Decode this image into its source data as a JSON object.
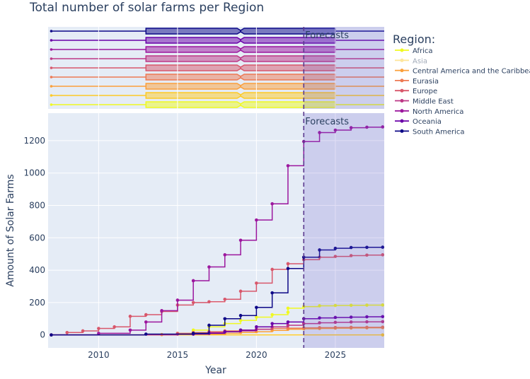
{
  "chart_data": {
    "type": "line",
    "title": "Total number of solar farms per Region",
    "xlabel": "Year",
    "ylabel": "Amount of Solar Farms",
    "xlim": [
      2006.8,
      2028.1
    ],
    "ylim": [
      -80,
      1370
    ],
    "x_ticks": [
      2010,
      2015,
      2020,
      2025
    ],
    "y_ticks": [
      0,
      200,
      400,
      600,
      800,
      1000,
      1200
    ],
    "forecast_start": 2023,
    "forecast_label": "Forecasts",
    "legend_title": "Region:",
    "grid": true,
    "legend_position": "right",
    "box_stats": {
      "q1": 2013,
      "median": 2019,
      "q3": 2025
    },
    "series": [
      {
        "name": "Africa",
        "color": "#f0f921",
        "legend_opacity": 1,
        "x": [
          2016,
          2017,
          2018,
          2019,
          2020,
          2021,
          2022,
          2022,
          2023,
          2024,
          2025,
          2026,
          2027,
          2028
        ],
        "y": [
          30,
          50,
          70,
          90,
          110,
          125,
          140,
          165,
          175,
          180,
          182,
          183,
          184,
          185
        ]
      },
      {
        "name": "Asia",
        "color": "#fdca26",
        "legend_opacity": 0.45,
        "x": [
          2007,
          2028
        ],
        "y": [
          0,
          0
        ]
      },
      {
        "name": "Central America and the Caribbean",
        "color": "#fb9f3a",
        "legend_opacity": 1,
        "x": [
          2014,
          2016,
          2018,
          2019,
          2020,
          2021,
          2022,
          2023,
          2024,
          2025,
          2026,
          2027,
          2028
        ],
        "y": [
          2,
          5,
          10,
          15,
          20,
          28,
          35,
          38,
          40,
          42,
          43,
          44,
          45
        ]
      },
      {
        "name": "Eurasia",
        "color": "#ed7953",
        "legend_opacity": 1,
        "x": [
          2015,
          2016,
          2017,
          2018,
          2019,
          2020,
          2021,
          2022,
          2023,
          2024,
          2025,
          2026,
          2027,
          2028
        ],
        "y": [
          10,
          15,
          20,
          25,
          30,
          35,
          40,
          42,
          44,
          45,
          46,
          47,
          47,
          48
        ]
      },
      {
        "name": "Europe",
        "color": "#d8576b",
        "legend_opacity": 1,
        "x": [
          2007,
          2008,
          2009,
          2010,
          2011,
          2012,
          2013,
          2014,
          2015,
          2016,
          2017,
          2018,
          2019,
          2020,
          2021,
          2022,
          2023,
          2024,
          2025,
          2026,
          2027,
          2028
        ],
        "y": [
          0,
          15,
          25,
          40,
          50,
          115,
          125,
          145,
          185,
          200,
          205,
          220,
          270,
          320,
          405,
          440,
          465,
          480,
          485,
          490,
          493,
          495
        ]
      },
      {
        "name": "Middle East",
        "color": "#bd3786",
        "legend_opacity": 1,
        "x": [
          2007,
          2015,
          2016,
          2017,
          2018,
          2019,
          2020,
          2021,
          2022,
          2023,
          2024,
          2025,
          2026,
          2027,
          2028
        ],
        "y": [
          0,
          5,
          10,
          15,
          20,
          25,
          35,
          50,
          60,
          70,
          75,
          78,
          80,
          81,
          82
        ]
      },
      {
        "name": "North America",
        "color": "#9c179e",
        "legend_opacity": 1,
        "x": [
          2007,
          2010,
          2012,
          2013,
          2014,
          2015,
          2016,
          2017,
          2018,
          2019,
          2020,
          2021,
          2022,
          2023,
          2024,
          2025,
          2026,
          2027,
          2028
        ],
        "y": [
          0,
          10,
          30,
          80,
          150,
          215,
          335,
          420,
          495,
          585,
          710,
          810,
          1045,
          1195,
          1250,
          1265,
          1280,
          1283,
          1285
        ]
      },
      {
        "name": "Oceania",
        "color": "#6a00a8",
        "legend_opacity": 1,
        "x": [
          2016,
          2017,
          2018,
          2019,
          2020,
          2021,
          2022,
          2023,
          2024,
          2025,
          2026,
          2027,
          2028
        ],
        "y": [
          5,
          10,
          20,
          30,
          50,
          70,
          80,
          100,
          105,
          108,
          110,
          112,
          113
        ]
      },
      {
        "name": "South America",
        "color": "#0d0887",
        "legend_opacity": 1,
        "x": [
          2007,
          2013,
          2016,
          2017,
          2018,
          2019,
          2020,
          2021,
          2022,
          2023,
          2024,
          2025,
          2026,
          2027,
          2028
        ],
        "y": [
          0,
          5,
          10,
          60,
          100,
          120,
          170,
          260,
          410,
          480,
          525,
          535,
          540,
          541,
          542
        ]
      }
    ]
  }
}
